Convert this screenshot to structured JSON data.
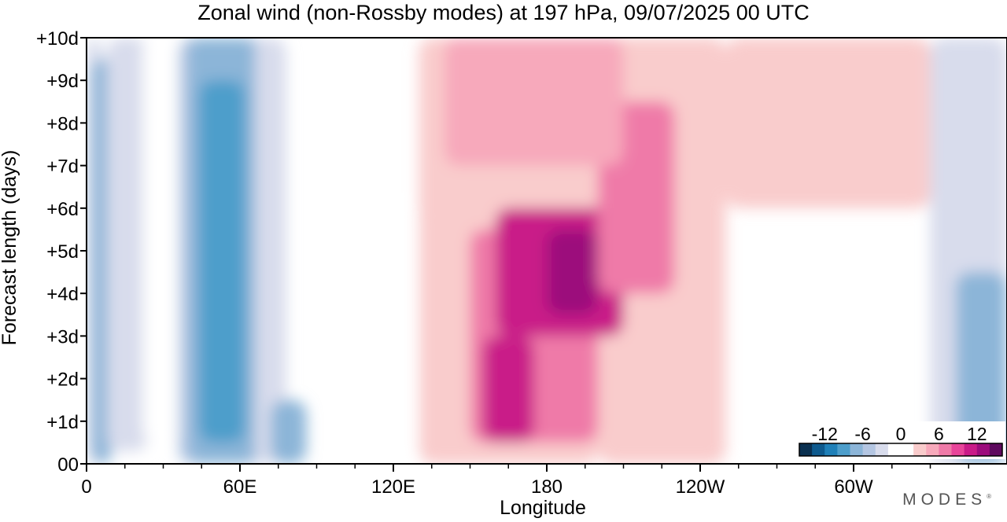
{
  "chart_data": {
    "type": "heatmap",
    "title": "Zonal wind (non-Rossby modes) at 197 hPa,  09/07/2025  00 UTC",
    "xlabel": "Longitude",
    "ylabel": "Forecast length (days)",
    "x_ticks": [
      "0",
      "60E",
      "120E",
      "180",
      "120W",
      "60W"
    ],
    "x_tick_lon": [
      0,
      60,
      120,
      180,
      240,
      300
    ],
    "xlim": [
      0,
      360
    ],
    "y_ticks": [
      "00",
      "+1d",
      "+2d",
      "+3d",
      "+4d",
      "+5d",
      "+6d",
      "+7d",
      "+8d",
      "+9d",
      "+10d"
    ],
    "ylim": [
      0,
      10
    ],
    "colorbar": {
      "labels": [
        "-12",
        "-6",
        "0",
        "6",
        "12"
      ],
      "label_values": [
        -12,
        -6,
        0,
        6,
        12
      ],
      "colors": [
        "#0a3050",
        "#0e5a8e",
        "#1f80b8",
        "#4d9ecb",
        "#8cb5d8",
        "#b4c6e2",
        "#d8dcec",
        "#ffffff",
        "#ffffff",
        "#f9cccc",
        "#f7a9bb",
        "#ef7aa8",
        "#e8459a",
        "#c91b88",
        "#9c0c7c",
        "#5e0a5e"
      ],
      "placement": "bottom-right"
    },
    "features": [
      {
        "lon_start": 0,
        "lon_end": 6,
        "day_start": 0,
        "day_end": 10,
        "value": -4
      },
      {
        "lon_start": 2,
        "lon_end": 10,
        "day_start": 0,
        "day_end": 9.5,
        "value": -7
      },
      {
        "lon_start": 8,
        "lon_end": 24,
        "day_start": 0.3,
        "day_end": 10,
        "value": -4
      },
      {
        "lon_start": 22,
        "lon_end": 36,
        "day_start": 0.5,
        "day_end": 10,
        "value": -2
      },
      {
        "lon_start": 36,
        "lon_end": 70,
        "day_start": 0,
        "day_end": 10,
        "value": -5
      },
      {
        "lon_start": 40,
        "lon_end": 66,
        "day_start": 0,
        "day_end": 10,
        "value": -8
      },
      {
        "lon_start": 44,
        "lon_end": 62,
        "day_start": 0.5,
        "day_end": 9,
        "value": -10
      },
      {
        "lon_start": 66,
        "lon_end": 78,
        "day_start": 0,
        "day_end": 10,
        "value": -3
      },
      {
        "lon_start": 72,
        "lon_end": 86,
        "day_start": 0,
        "day_end": 1.5,
        "value": -8
      },
      {
        "lon_start": 100,
        "lon_end": 130,
        "day_start": 0,
        "day_end": 6,
        "value": -2
      },
      {
        "lon_start": 130,
        "lon_end": 200,
        "day_start": 0,
        "day_end": 10,
        "value": 3
      },
      {
        "lon_start": 200,
        "lon_end": 250,
        "day_start": 0,
        "day_end": 10,
        "value": 2
      },
      {
        "lon_start": 150,
        "lon_end": 200,
        "day_start": 0.5,
        "day_end": 5.5,
        "value": 7
      },
      {
        "lon_start": 160,
        "lon_end": 210,
        "day_start": 3,
        "day_end": 6,
        "value": 10
      },
      {
        "lon_start": 155,
        "lon_end": 175,
        "day_start": 0.5,
        "day_end": 3,
        "value": 10
      },
      {
        "lon_start": 180,
        "lon_end": 200,
        "day_start": 3.5,
        "day_end": 5.5,
        "value": 12
      },
      {
        "lon_start": 200,
        "lon_end": 230,
        "day_start": 4,
        "day_end": 8.5,
        "value": 6
      },
      {
        "lon_start": 140,
        "lon_end": 210,
        "day_start": 7,
        "day_end": 10,
        "value": 5
      },
      {
        "lon_start": 250,
        "lon_end": 330,
        "day_start": 6,
        "day_end": 10,
        "value": 2
      },
      {
        "lon_start": 330,
        "lon_end": 360,
        "day_start": 0,
        "day_end": 10,
        "value": -3
      },
      {
        "lon_start": 340,
        "lon_end": 360,
        "day_start": 0,
        "day_end": 4.5,
        "value": -7
      }
    ]
  },
  "brand": {
    "name": "MODES",
    "mark": "®"
  }
}
